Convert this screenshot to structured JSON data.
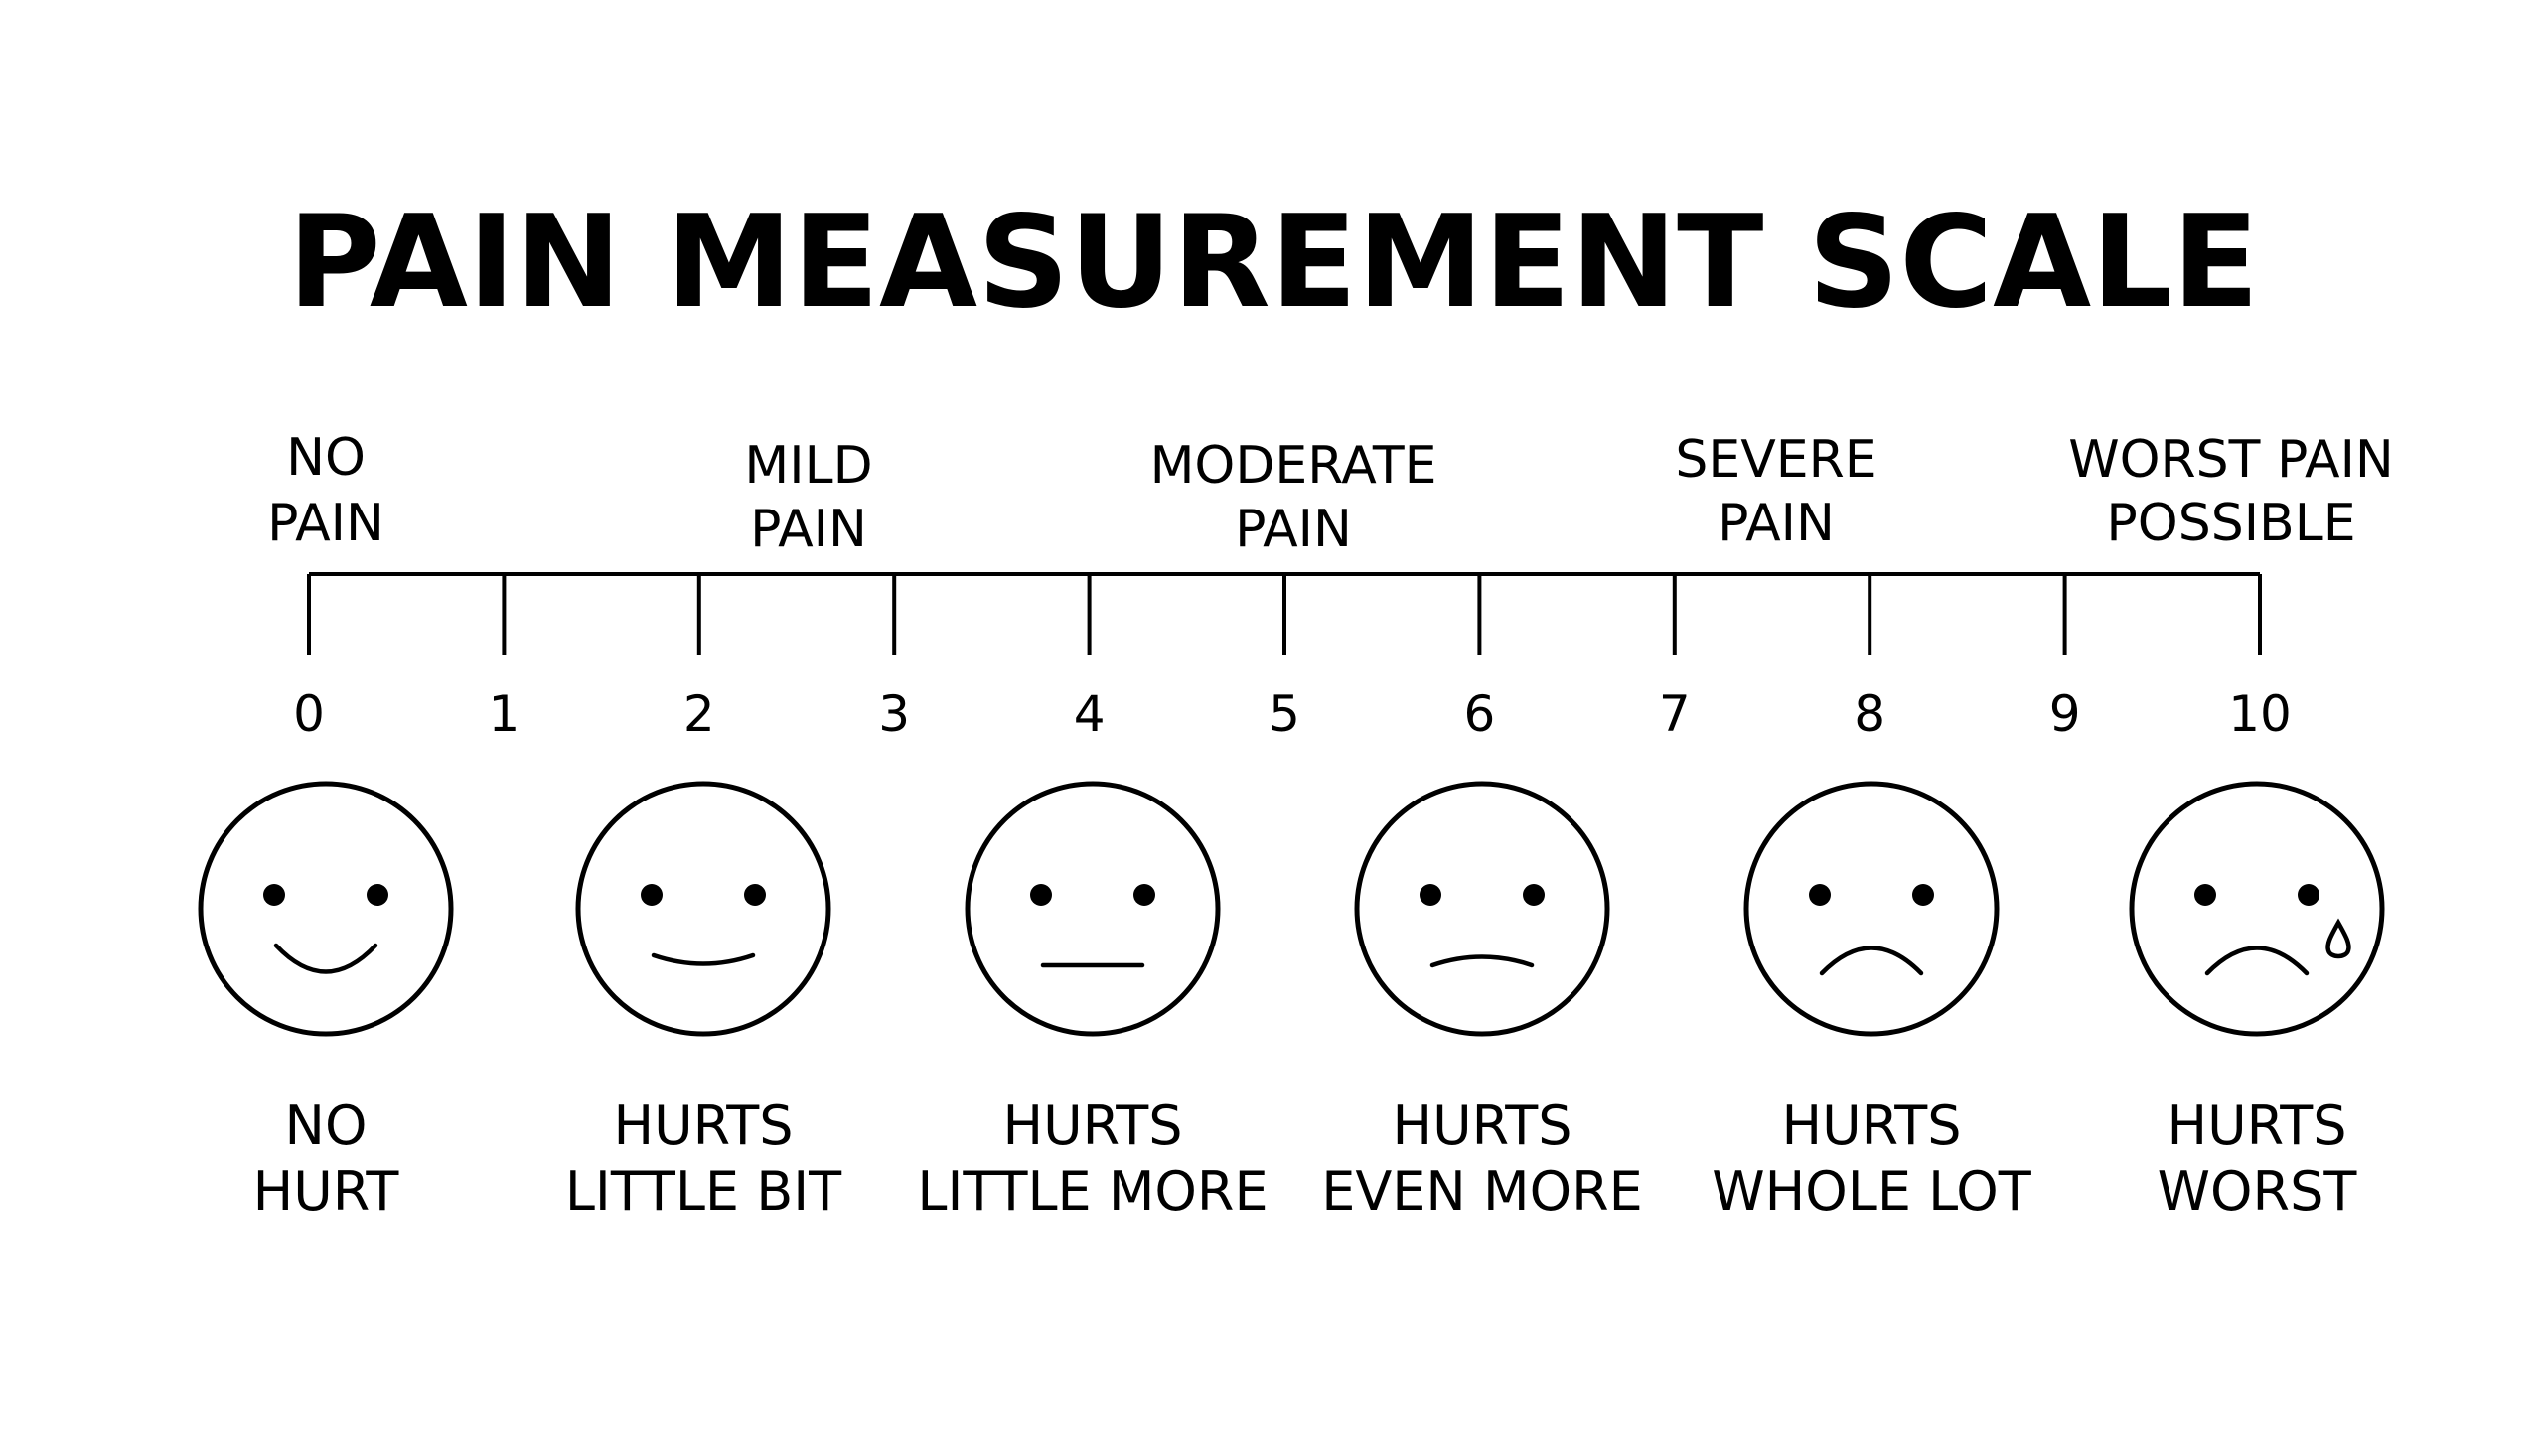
{
  "title": "PAIN MEASUREMENT SCALE",
  "scale": {
    "numbers": [
      "0",
      "1",
      "2",
      "3",
      "4",
      "5",
      "6",
      "7",
      "8",
      "9",
      "10"
    ],
    "categories": [
      {
        "line1": "NO",
        "line2": "PAIN"
      },
      {
        "line1": "MILD",
        "line2": "PAIN"
      },
      {
        "line1": "MODERATE",
        "line2": "PAIN"
      },
      {
        "line1": "SEVERE",
        "line2": "PAIN"
      },
      {
        "line1": "WORST PAIN",
        "line2": "POSSIBLE"
      }
    ]
  },
  "faces": [
    {
      "expression": "smile",
      "line1": "NO",
      "line2": "HURT"
    },
    {
      "expression": "slight-smile",
      "line1": "HURTS",
      "line2": "LITTLE BIT"
    },
    {
      "expression": "neutral",
      "line1": "HURTS",
      "line2": "LITTLE MORE"
    },
    {
      "expression": "slight-frown",
      "line1": "HURTS",
      "line2": "EVEN MORE"
    },
    {
      "expression": "frown",
      "line1": "HURTS",
      "line2": "WHOLE LOT"
    },
    {
      "expression": "frown-with-tear",
      "line1": "HURTS",
      "line2": "WORST"
    }
  ],
  "colors": {
    "ink": "#000000",
    "background": "#ffffff"
  }
}
